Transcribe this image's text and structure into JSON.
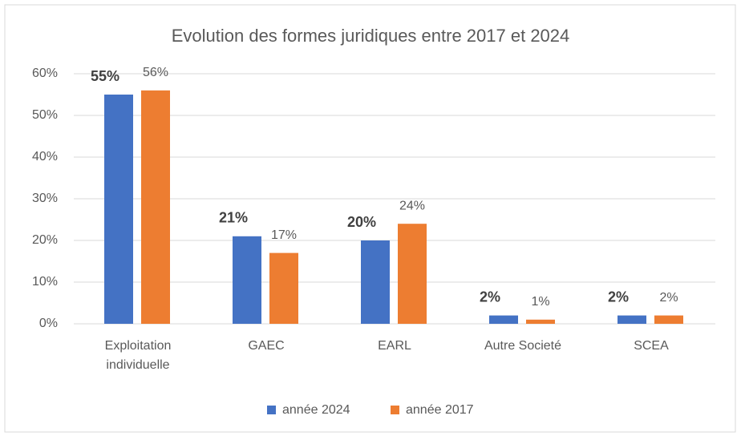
{
  "chart_data": {
    "type": "bar",
    "title": "Evolution des formes juridiques entre 2017 et 2024",
    "categories": [
      "Exploitation individuelle",
      "GAEC",
      "EARL",
      "Autre Societé",
      "SCEA"
    ],
    "series": [
      {
        "name": "année 2024",
        "color": "#4472c4",
        "values": [
          55,
          21,
          20,
          2,
          2
        ],
        "value_labels": [
          "55%",
          "21%",
          "20%",
          "2%",
          "2%"
        ]
      },
      {
        "name": "année 2017",
        "color": "#ed7d31",
        "values": [
          56,
          17,
          24,
          1,
          2
        ],
        "value_labels": [
          "56%",
          "17%",
          "24%",
          "1%",
          "2%"
        ]
      }
    ],
    "ylim": [
      0,
      60
    ],
    "yticks": [
      {
        "value": 0,
        "label": "0%"
      },
      {
        "value": 10,
        "label": "10%"
      },
      {
        "value": 20,
        "label": "20%"
      },
      {
        "value": 30,
        "label": "30%"
      },
      {
        "value": 40,
        "label": "40%"
      },
      {
        "value": 50,
        "label": "50%"
      },
      {
        "value": 60,
        "label": "60%"
      }
    ],
    "grid": true,
    "legend": "bottom"
  }
}
